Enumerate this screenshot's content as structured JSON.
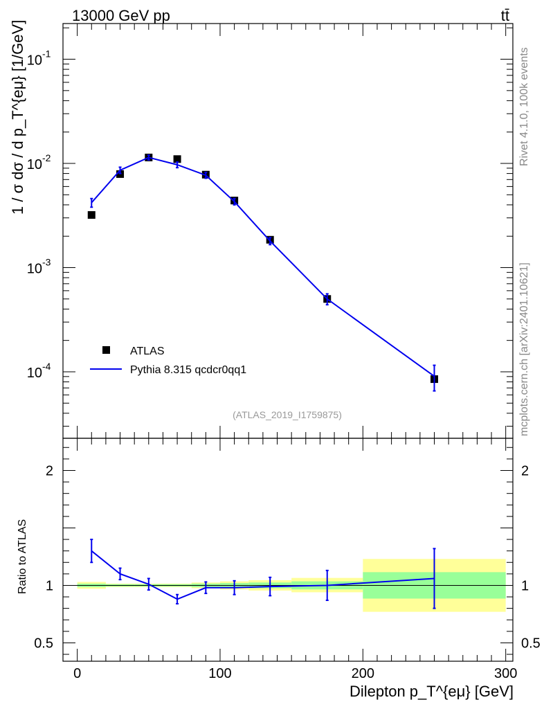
{
  "header": {
    "energy_label": "13000 GeV pp",
    "process_label": "tt̄"
  },
  "side_labels": {
    "rivet": "Rivet 4.1.0,  100k events",
    "mcplots": "mcplots.cern.ch [arXiv:2401.10621]"
  },
  "analysis_id": "(ATLAS_2019_I1759875)",
  "legend": {
    "data_label": "ATLAS",
    "mc_label": "Pythia 8.315 qcdcr0qq1"
  },
  "colors": {
    "data": "#000000",
    "mc": "#0000ee",
    "band_inner": "#99ff99",
    "band_outer": "#ffff99"
  },
  "chart_data": [
    {
      "type": "scatter",
      "panel": "main",
      "title": "",
      "xlabel": "Dilepton p_T^{eμ} [GeV]",
      "ylabel": "1 / σ dσ / d p_T^{eμ} [1/GeV]",
      "yscale": "log",
      "xlim": [
        -10,
        305
      ],
      "ylim": [
        2.3e-05,
        0.22
      ],
      "y_tick_labels": [
        "10",
        "10",
        "10",
        "10"
      ],
      "y_tick_exponents": [
        "-4",
        "-3",
        "-2",
        "-1"
      ],
      "y_tick_values": [
        0.0001,
        0.001,
        0.01,
        0.1
      ],
      "series": [
        {
          "name": "ATLAS",
          "x": [
            10,
            30,
            50,
            70,
            90,
            110,
            135,
            175,
            250
          ],
          "x_lo": [
            0,
            20,
            40,
            60,
            80,
            100,
            120,
            150,
            200
          ],
          "x_hi": [
            20,
            40,
            60,
            80,
            100,
            120,
            150,
            200,
            300
          ],
          "values": [
            0.0032,
            0.0079,
            0.0114,
            0.011,
            0.0078,
            0.0044,
            0.00185,
            0.0005,
            8.5e-05
          ]
        },
        {
          "name": "Pythia 8.315 qcdcr0qq1",
          "x": [
            10,
            30,
            50,
            70,
            90,
            110,
            135,
            175,
            250
          ],
          "values": [
            0.0042,
            0.0086,
            0.0114,
            0.0097,
            0.0077,
            0.0043,
            0.0018,
            0.0005,
            9.05e-05
          ],
          "err_lo": [
            0.0004,
            0.0006,
            0.0006,
            0.0006,
            0.0005,
            0.0003,
            0.00014,
            6e-05,
            2.5e-05
          ],
          "err_hi": [
            0.0004,
            0.0006,
            0.0006,
            0.0006,
            0.0005,
            0.0003,
            0.00014,
            6e-05,
            2.5e-05
          ]
        }
      ]
    },
    {
      "type": "line",
      "panel": "ratio",
      "xlabel": "Dilepton p_T^{eμ} [GeV]",
      "ylabel": "Ratio to ATLAS",
      "xlim": [
        -10,
        305
      ],
      "ylim": [
        0.34,
        2.28
      ],
      "x_ticks": [
        0,
        100,
        200,
        300
      ],
      "x_tick_labels": [
        "0",
        "100",
        "200",
        "300"
      ],
      "y_ticks": [
        0.5,
        1,
        2
      ],
      "y_tick_labels": [
        "0.5",
        "1",
        "2"
      ],
      "bands": {
        "x_lo": [
          0,
          20,
          40,
          60,
          80,
          100,
          120,
          150,
          200
        ],
        "x_hi": [
          20,
          40,
          60,
          80,
          100,
          120,
          150,
          200,
          300
        ],
        "inner_lo": [
          0.985,
          0.99,
          0.99,
          0.99,
          0.985,
          0.98,
          0.975,
          0.965,
          0.885
        ],
        "inner_hi": [
          1.015,
          1.01,
          1.01,
          1.01,
          1.015,
          1.02,
          1.025,
          1.035,
          1.115
        ],
        "outer_lo": [
          0.97,
          0.985,
          0.985,
          0.985,
          0.975,
          0.965,
          0.955,
          0.94,
          0.77
        ],
        "outer_hi": [
          1.03,
          1.015,
          1.015,
          1.015,
          1.025,
          1.035,
          1.045,
          1.065,
          1.23
        ]
      },
      "series": [
        {
          "name": "Pythia 8.315 qcdcr0qq1 / ATLAS",
          "x": [
            10,
            30,
            50,
            70,
            90,
            110,
            135,
            175,
            250
          ],
          "values": [
            1.3,
            1.1,
            1.01,
            0.88,
            0.98,
            0.98,
            0.99,
            1.0,
            1.06
          ],
          "err_lo": [
            0.1,
            0.05,
            0.05,
            0.04,
            0.05,
            0.06,
            0.08,
            0.13,
            0.26
          ],
          "err_hi": [
            0.1,
            0.05,
            0.05,
            0.04,
            0.05,
            0.06,
            0.08,
            0.13,
            0.26
          ]
        }
      ]
    }
  ]
}
